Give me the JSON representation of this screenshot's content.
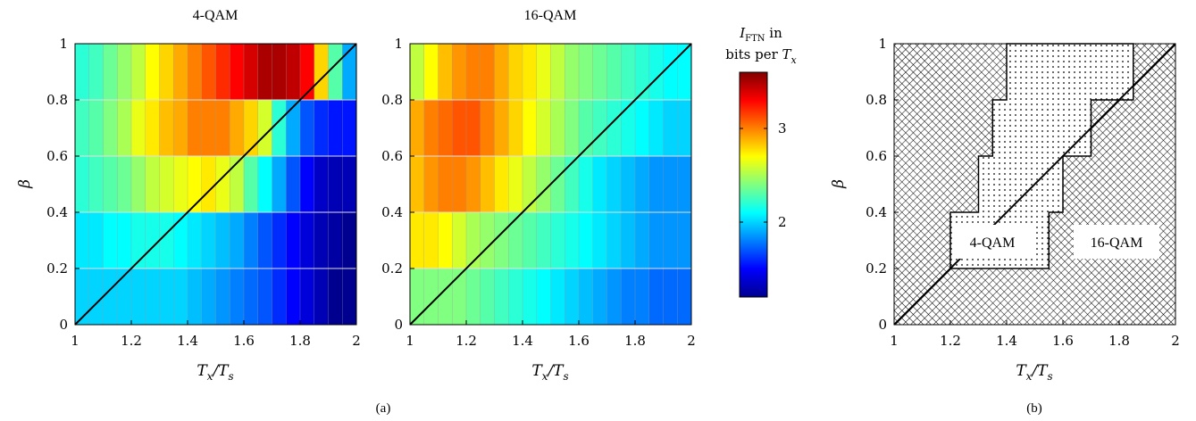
{
  "chart_data": [
    {
      "type": "heatmap",
      "title": "4-QAM",
      "xlabel": "T_x/T_s",
      "ylabel": "β",
      "xlim": [
        1,
        2
      ],
      "ylim": [
        0,
        1
      ],
      "x_ticks": [
        "1",
        "1.2",
        "1.4",
        "1.6",
        "1.8",
        "2"
      ],
      "y_ticks": [
        "0",
        "0.2",
        "0.4",
        "0.6",
        "0.8",
        "1"
      ],
      "x_bins": [
        1.0,
        1.05,
        1.1,
        1.15,
        1.2,
        1.25,
        1.3,
        1.35,
        1.4,
        1.45,
        1.5,
        1.55,
        1.6,
        1.65,
        1.7,
        1.75,
        1.8,
        1.85,
        1.9,
        1.95
      ],
      "y_bins": [
        0,
        0.2,
        0.4,
        0.6,
        0.8
      ],
      "values": [
        [
          2.0,
          2.0,
          2.0,
          2.0,
          2.0,
          2.0,
          2.0,
          2.0,
          1.95,
          1.9,
          1.85,
          1.8,
          1.75,
          1.7,
          1.6,
          1.5,
          1.4,
          1.3,
          1.2,
          1.2
        ],
        [
          2.05,
          2.05,
          2.1,
          2.1,
          2.15,
          2.15,
          2.15,
          2.1,
          2.05,
          2.0,
          1.95,
          1.9,
          1.8,
          1.7,
          1.6,
          1.5,
          1.4,
          1.3,
          1.25,
          1.2
        ],
        [
          2.2,
          2.25,
          2.3,
          2.35,
          2.45,
          2.55,
          2.6,
          2.65,
          2.7,
          2.75,
          2.65,
          2.55,
          2.3,
          2.1,
          1.9,
          1.7,
          1.5,
          1.35,
          1.3,
          1.3
        ],
        [
          2.25,
          2.3,
          2.4,
          2.5,
          2.65,
          2.75,
          2.85,
          2.9,
          3.0,
          3.0,
          3.0,
          2.9,
          2.8,
          2.6,
          2.2,
          1.9,
          1.7,
          1.6,
          1.55,
          1.55
        ],
        [
          2.2,
          2.25,
          2.35,
          2.45,
          2.55,
          2.7,
          2.8,
          2.9,
          3.0,
          3.1,
          3.2,
          3.3,
          3.4,
          3.5,
          3.5,
          3.45,
          3.3,
          2.8,
          2.3,
          1.9
        ]
      ]
    },
    {
      "type": "heatmap",
      "title": "16-QAM",
      "xlabel": "T_x/T_s",
      "ylabel": "",
      "xlim": [
        1,
        2
      ],
      "ylim": [
        0,
        1
      ],
      "x_ticks": [
        "1",
        "1.2",
        "1.4",
        "1.6",
        "1.8",
        "2"
      ],
      "y_ticks": [
        "0",
        "0.2",
        "0.4",
        "0.6",
        "0.8",
        "1"
      ],
      "x_bins": [
        1.0,
        1.05,
        1.1,
        1.15,
        1.2,
        1.25,
        1.3,
        1.35,
        1.4,
        1.45,
        1.5,
        1.55,
        1.6,
        1.65,
        1.7,
        1.75,
        1.8,
        1.85,
        1.9,
        1.95
      ],
      "y_bins": [
        0,
        0.2,
        0.4,
        0.6,
        0.8
      ],
      "values": [
        [
          2.4,
          2.4,
          2.4,
          2.4,
          2.35,
          2.3,
          2.25,
          2.2,
          2.15,
          2.1,
          2.05,
          2.0,
          1.95,
          1.9,
          1.85,
          1.8,
          1.8,
          1.75,
          1.75,
          1.75
        ],
        [
          2.75,
          2.75,
          2.7,
          2.6,
          2.5,
          2.45,
          2.4,
          2.35,
          2.3,
          2.25,
          2.2,
          2.15,
          2.1,
          2.05,
          2.0,
          1.95,
          1.9,
          1.85,
          1.85,
          1.85
        ],
        [
          2.85,
          2.95,
          3.0,
          3.0,
          2.95,
          2.85,
          2.75,
          2.65,
          2.55,
          2.45,
          2.35,
          2.25,
          2.15,
          2.05,
          2.0,
          1.95,
          1.9,
          1.85,
          1.85,
          1.85
        ],
        [
          2.9,
          3.0,
          3.05,
          3.1,
          3.1,
          3.0,
          2.9,
          2.8,
          2.7,
          2.6,
          2.5,
          2.4,
          2.3,
          2.25,
          2.2,
          2.15,
          2.1,
          2.05,
          2.0,
          2.0
        ],
        [
          2.55,
          2.7,
          2.85,
          2.95,
          3.0,
          3.0,
          2.9,
          2.8,
          2.75,
          2.65,
          2.55,
          2.45,
          2.4,
          2.35,
          2.3,
          2.25,
          2.2,
          2.15,
          2.1,
          2.1
        ]
      ]
    },
    {
      "type": "heatmap",
      "title": "",
      "xlabel": "T_x/T_s",
      "ylabel": "β",
      "xlim": [
        1,
        2
      ],
      "ylim": [
        0,
        1
      ],
      "x_ticks": [
        "1",
        "1.2",
        "1.4",
        "1.6",
        "1.8",
        "2"
      ],
      "y_ticks": [
        "0",
        "0.2",
        "0.4",
        "0.6",
        "0.8",
        "1"
      ],
      "regions": [
        "4-QAM",
        "16-QAM"
      ],
      "boundary_4qam": [
        [
          1.2,
          0.2
        ],
        [
          1.55,
          0.2
        ],
        [
          1.55,
          0.4
        ],
        [
          1.6,
          0.4
        ],
        [
          1.6,
          0.6
        ],
        [
          1.7,
          0.6
        ],
        [
          1.7,
          0.8
        ],
        [
          1.85,
          0.8
        ],
        [
          1.85,
          1.0
        ],
        [
          1.4,
          1.0
        ],
        [
          1.4,
          0.8
        ],
        [
          1.35,
          0.8
        ],
        [
          1.35,
          0.6
        ],
        [
          1.3,
          0.6
        ],
        [
          1.3,
          0.4
        ],
        [
          1.2,
          0.4
        ]
      ]
    }
  ],
  "colorbar": {
    "title_main": "I",
    "title_sub": "FTN",
    "title_suffix": " in",
    "title_line2": "bits per ",
    "title_line2_var": "T",
    "title_line2_sub": "x",
    "range": [
      1.2,
      3.6
    ],
    "ticks": [
      2,
      3
    ],
    "tick_labels": [
      "2",
      "3"
    ]
  },
  "captions": [
    "(a)",
    "(b)"
  ],
  "colors": {
    "grid": "#bdbdbd",
    "diagonal": "#000000",
    "hatch": "#000000"
  }
}
